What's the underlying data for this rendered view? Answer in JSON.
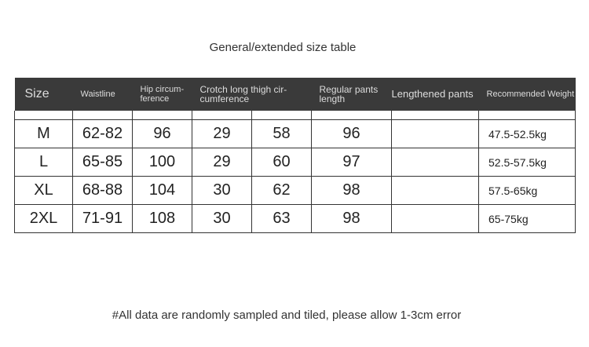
{
  "title": "General/extended size table",
  "headers": [
    "Size",
    "Waistline",
    "Hip circum-ference",
    "Crotch long thigh cir-cumference",
    "Regular pants length",
    "Lengthened pants",
    "Recommended Weight"
  ],
  "rows": [
    {
      "size": "M",
      "waist": "62-82",
      "hip": "96",
      "crotch": "29",
      "thigh": "58",
      "regular": "96",
      "lengthened": "",
      "weight": "47.5-52.5kg"
    },
    {
      "size": "L",
      "waist": "65-85",
      "hip": "100",
      "crotch": "29",
      "thigh": "60",
      "regular": "97",
      "lengthened": "",
      "weight": "52.5-57.5kg"
    },
    {
      "size": "XL",
      "waist": "68-88",
      "hip": "104",
      "crotch": "30",
      "thigh": "62",
      "regular": "98",
      "lengthened": "",
      "weight": "57.5-65kg"
    },
    {
      "size": "2XL",
      "waist": "71-91",
      "hip": "108",
      "crotch": "30",
      "thigh": "63",
      "regular": "98",
      "lengthened": "",
      "weight": "65-75kg"
    }
  ],
  "note": "#All data are randomly sampled and tiled, please allow 1-3cm error"
}
